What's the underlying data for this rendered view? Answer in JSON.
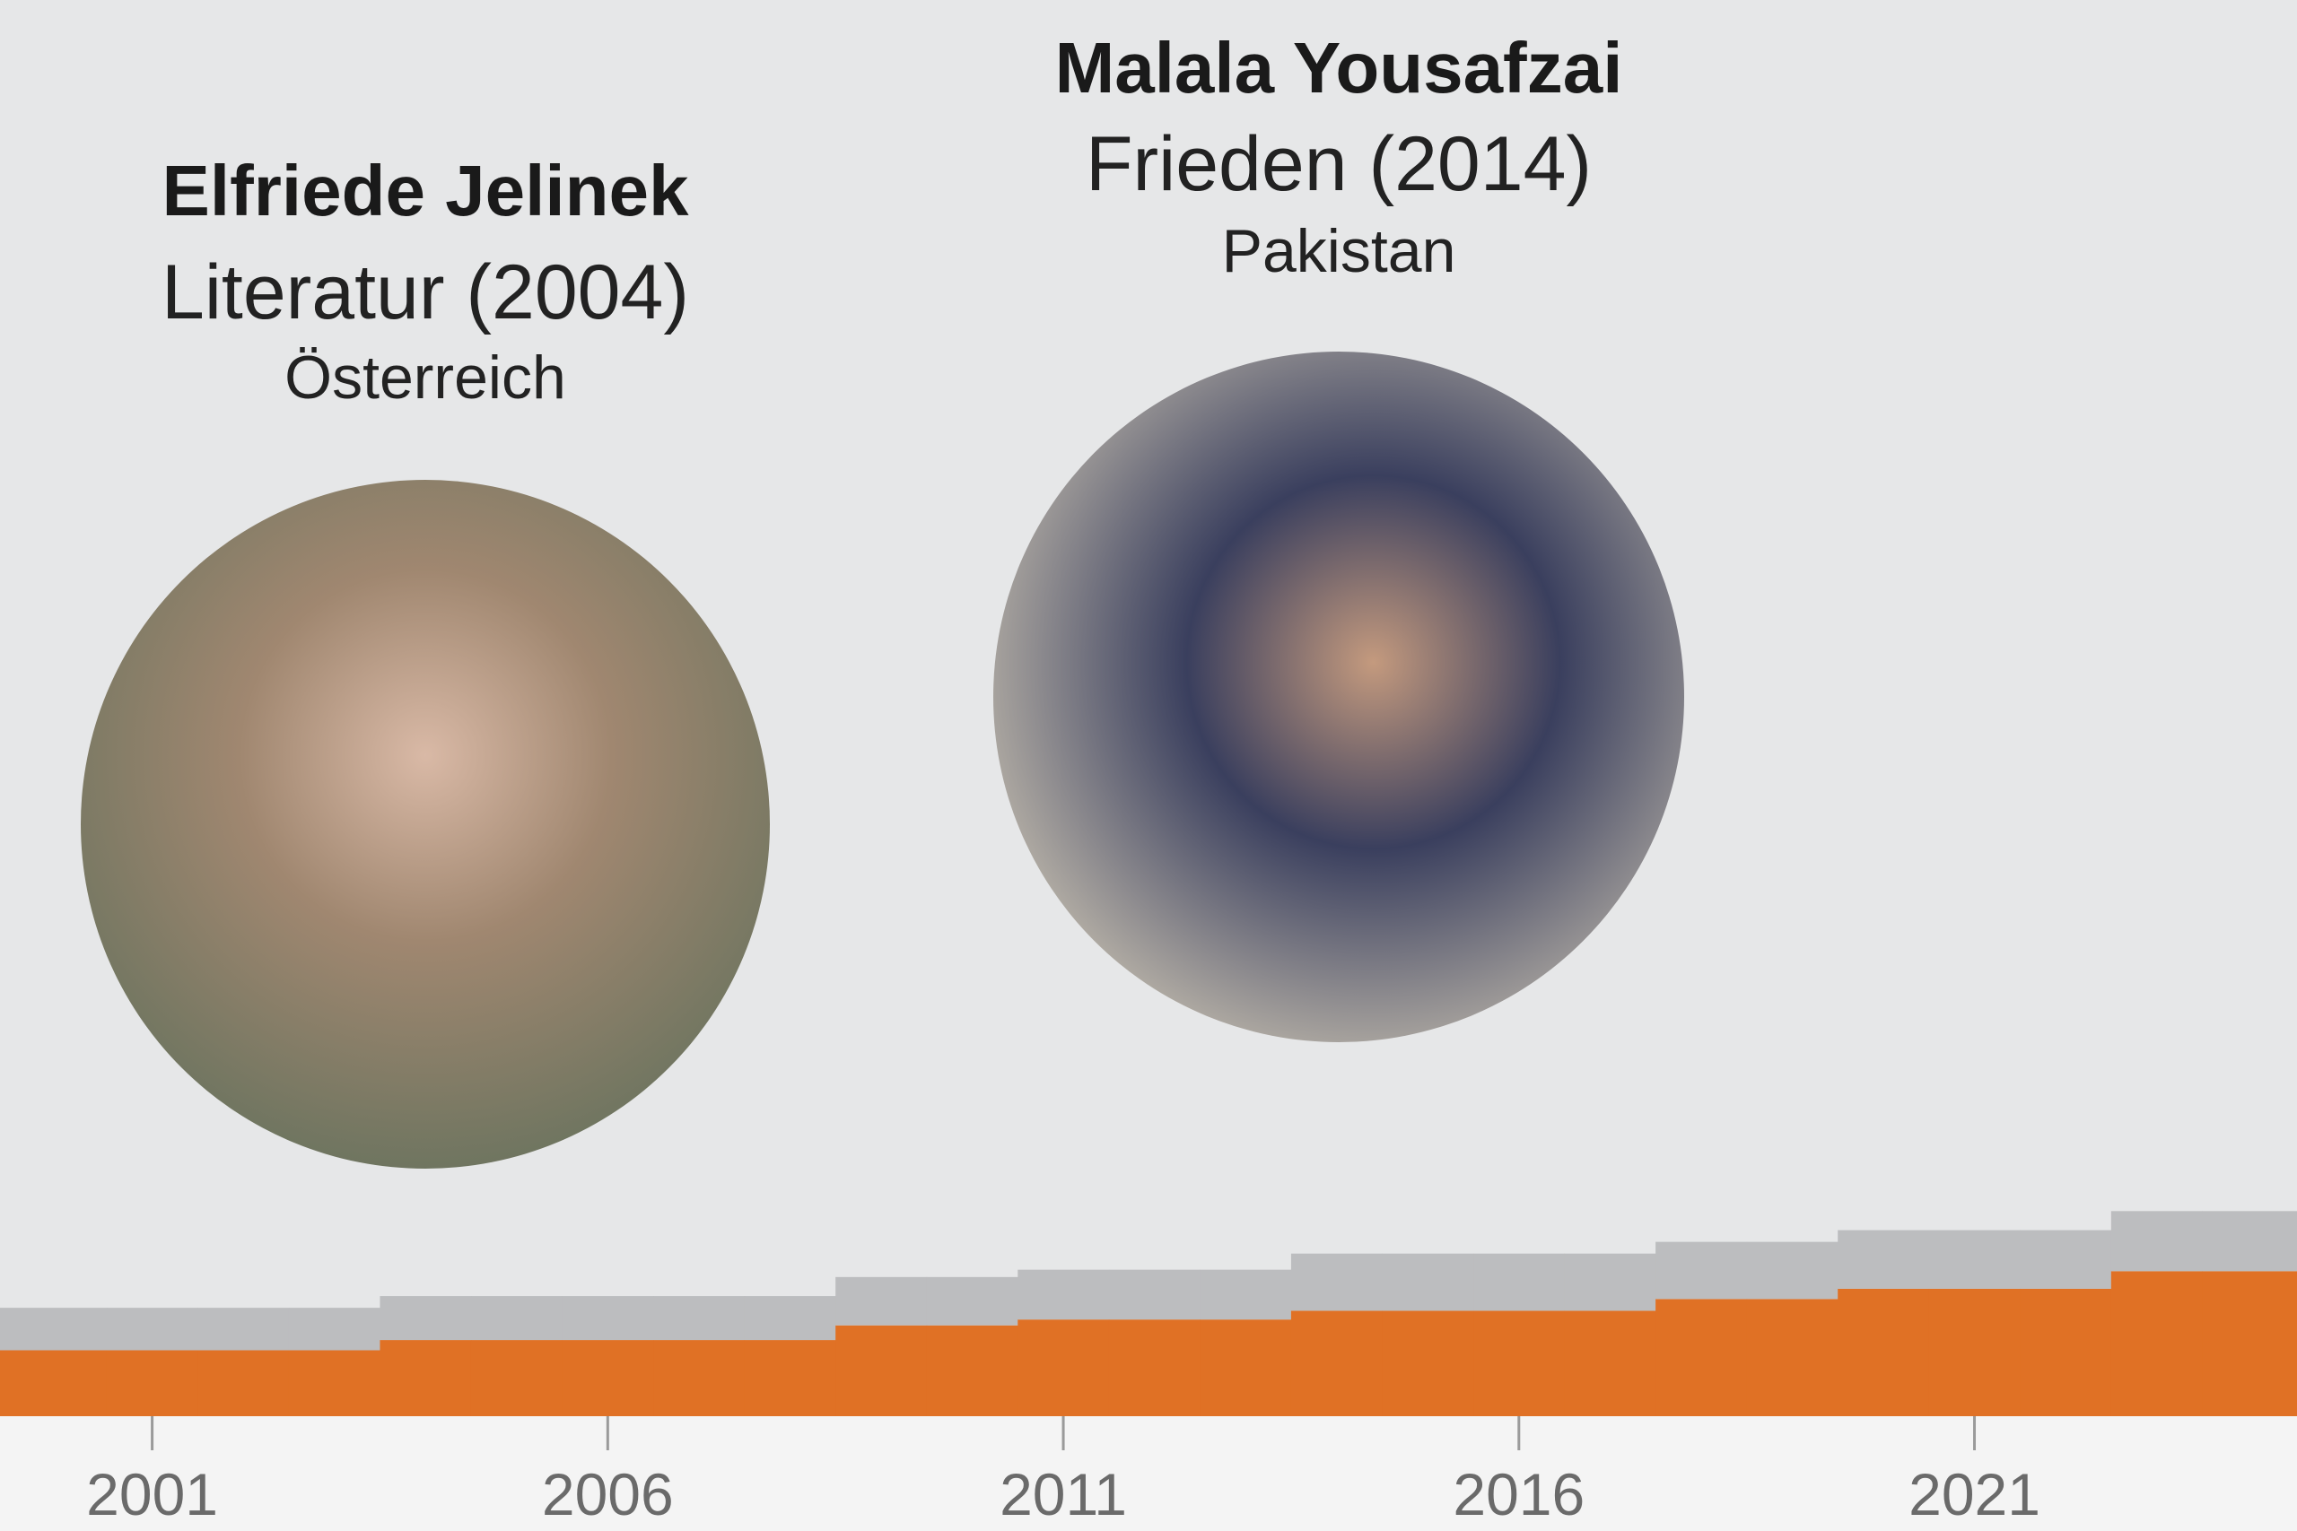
{
  "chart_data": {
    "type": "step-area",
    "x": [
      2000,
      2001,
      2002,
      2003,
      2004,
      2005,
      2006,
      2007,
      2008,
      2009,
      2010,
      2011,
      2012,
      2013,
      2014,
      2015,
      2016,
      2017,
      2018,
      2019,
      2020,
      2021,
      2022,
      2023,
      2024
    ],
    "series": [
      {
        "color": "#e07125",
        "values": [
          45,
          45,
          45,
          45,
          52,
          52,
          52,
          52,
          52,
          62,
          62,
          66,
          66,
          66,
          72,
          72,
          72,
          72,
          80,
          80,
          87,
          87,
          87,
          99,
          99
        ]
      },
      {
        "color": "#bcbdbf",
        "values": [
          29,
          29,
          29,
          29,
          30,
          30,
          30,
          30,
          30,
          33,
          33,
          34,
          34,
          34,
          39,
          39,
          39,
          39,
          39,
          39,
          40,
          40,
          40,
          41,
          41
        ]
      }
    ],
    "xlim": [
      1999.33,
      2024.54
    ],
    "ylim": [
      0,
      300
    ],
    "xticks": [
      2001,
      2006,
      2011,
      2016,
      2021
    ],
    "annotations": [
      {
        "name": "Elfriede Jelinek",
        "prize": "Literatur (2004)",
        "country": "Österreich"
      },
      {
        "name": "Malala Yousafzai",
        "prize": "Frieden (2014)",
        "country": "Pakistan"
      }
    ]
  }
}
